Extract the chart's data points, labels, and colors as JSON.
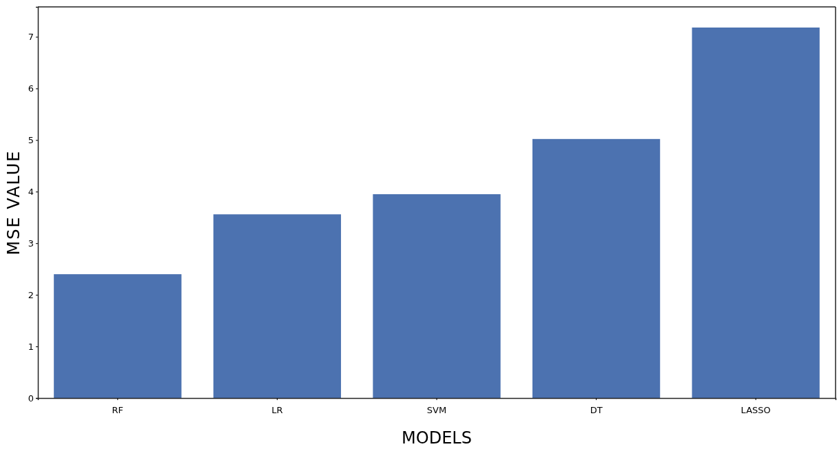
{
  "chart_data": {
    "type": "bar",
    "xlabel": "MODELS",
    "ylabel": "MSE VALUE",
    "categories": [
      "RF",
      "LR",
      "SVM",
      "DT",
      "LASSO"
    ],
    "values": [
      2.4,
      3.56,
      3.95,
      5.02,
      7.18
    ],
    "color": "#4c72b0",
    "ylim": [
      0,
      7.58
    ],
    "yticks": [
      0,
      1,
      2,
      3,
      4,
      5,
      6,
      7
    ],
    "grid": false
  }
}
